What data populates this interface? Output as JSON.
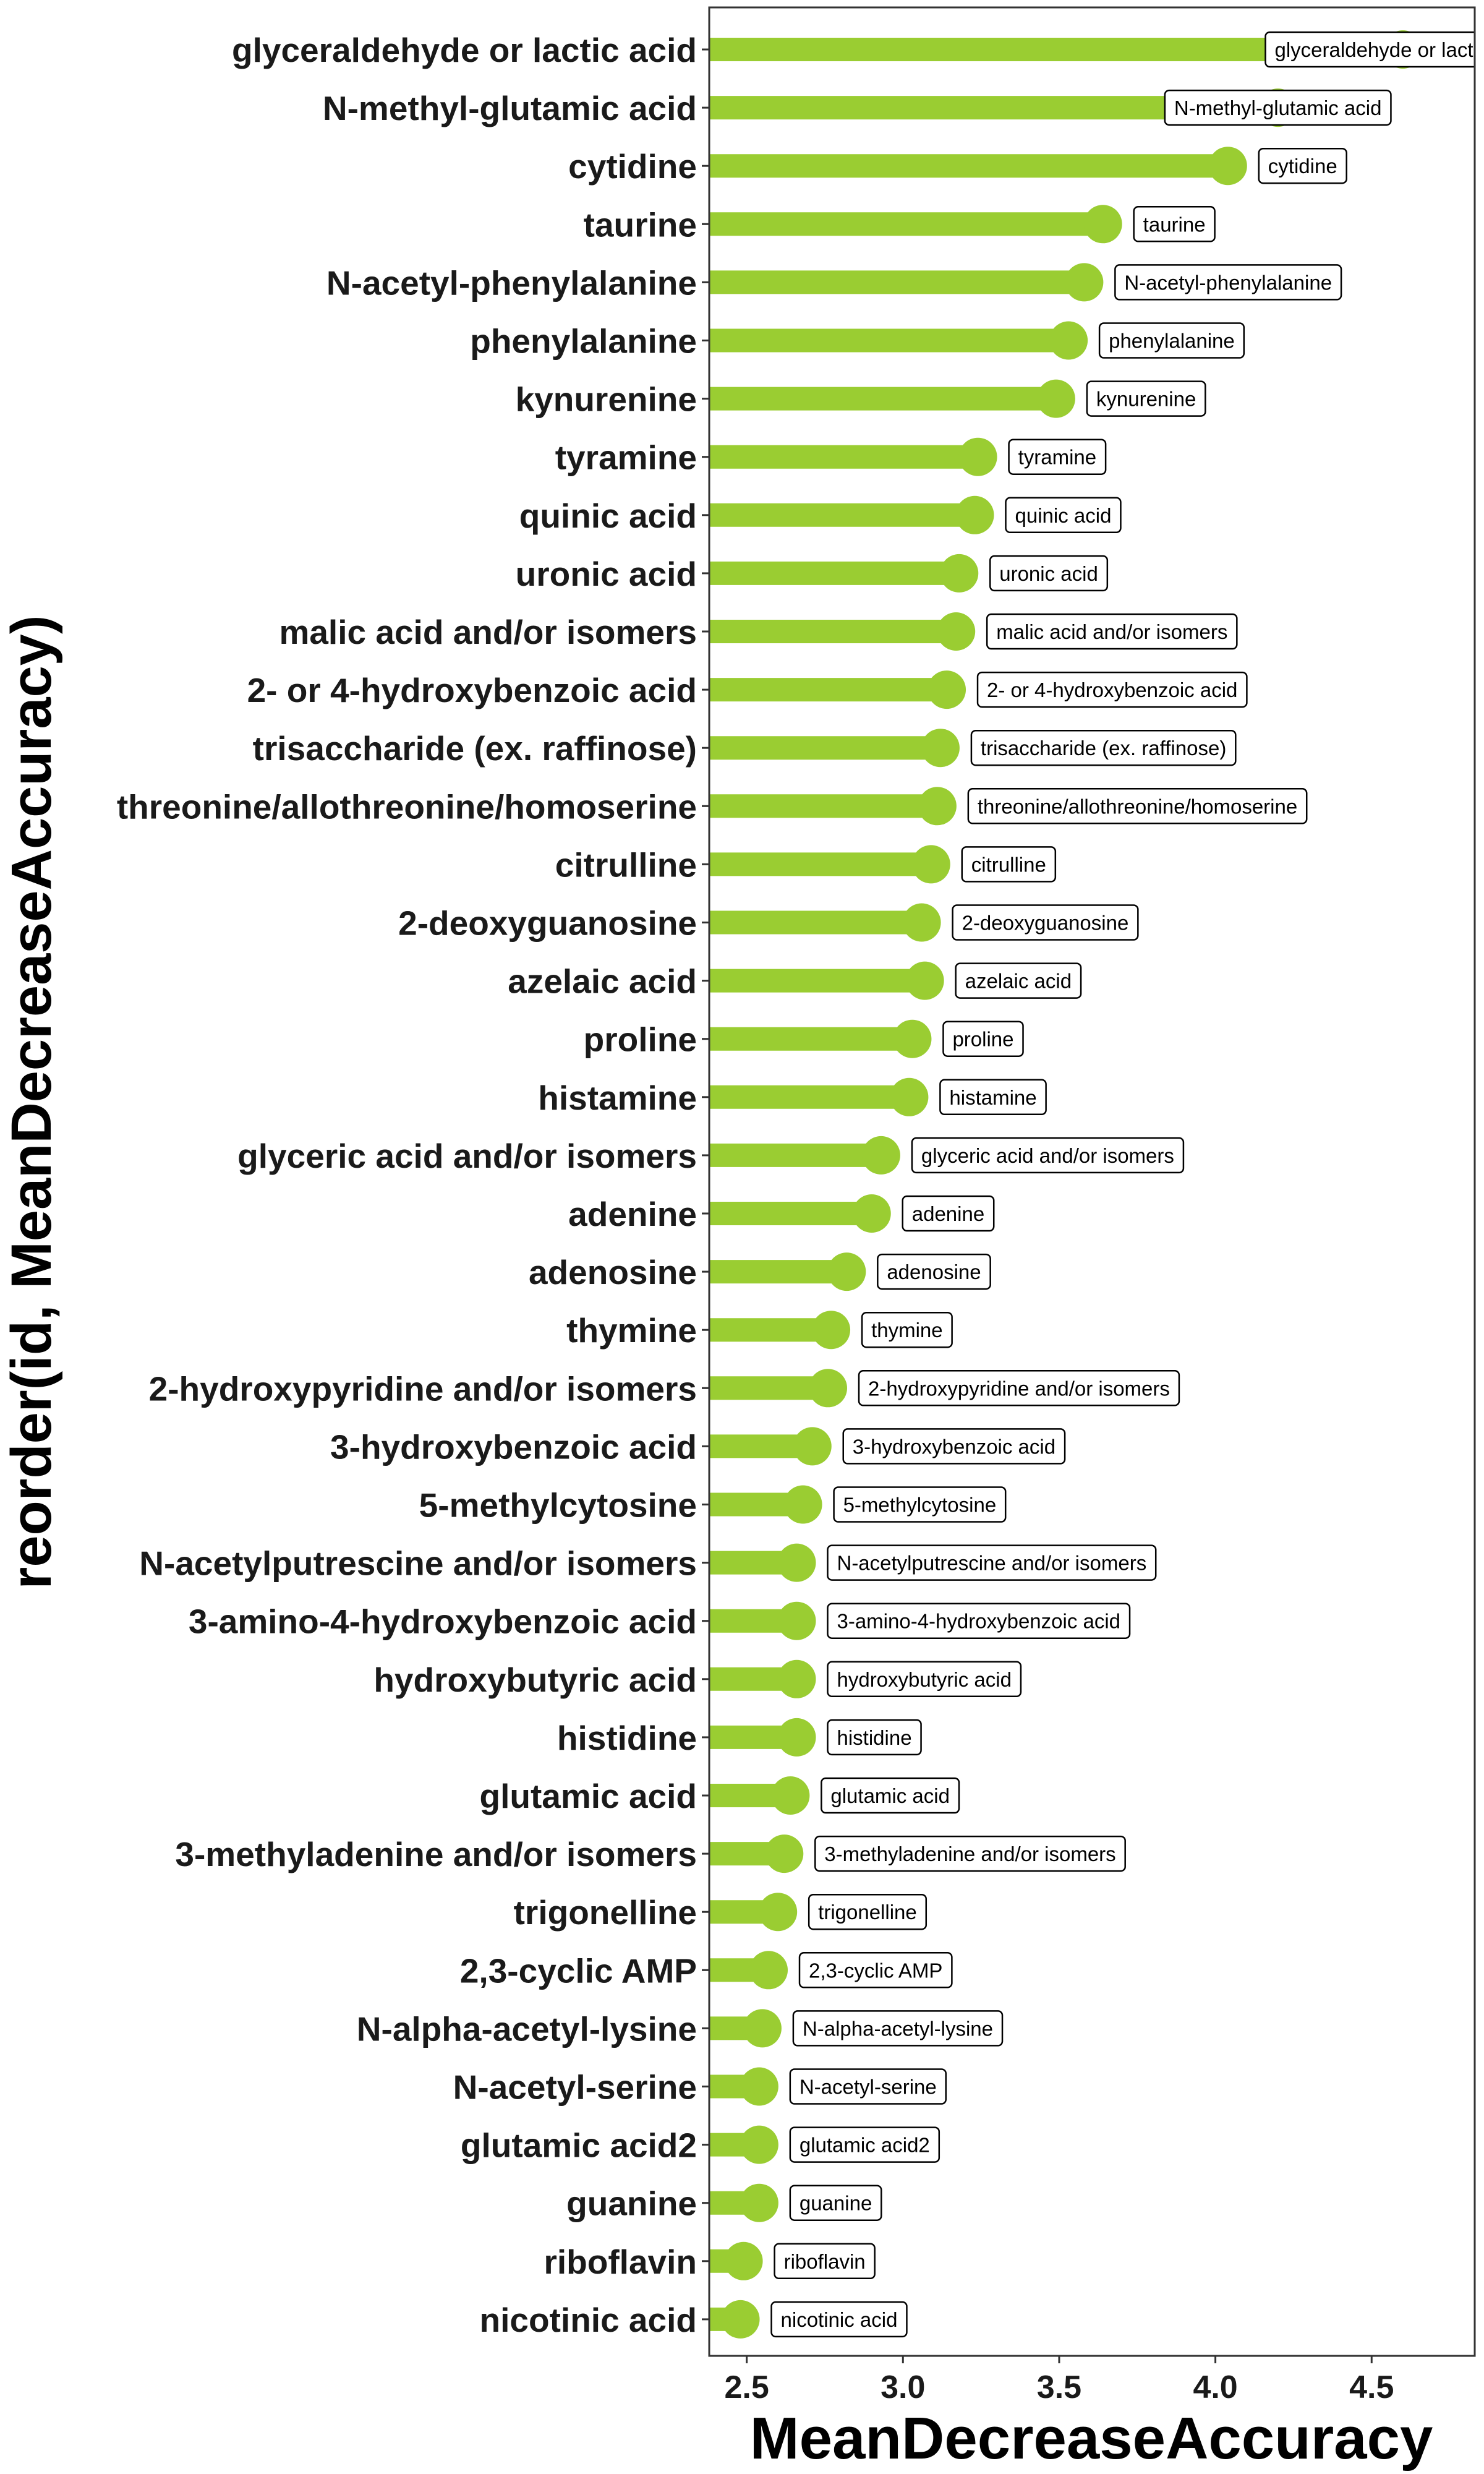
{
  "chart_data": {
    "type": "lollipop",
    "xlabel": "MeanDecreaseAccuracy",
    "ylabel": "reorder(id, MeanDecreaseAccuracy)",
    "xlim": [
      2.38,
      4.83
    ],
    "xticks": [
      2.5,
      3.0,
      3.5,
      4.0,
      4.5
    ],
    "xtick_labels": [
      "2.5",
      "3.0",
      "3.5",
      "4.0",
      "4.5"
    ],
    "grid": false,
    "color": "#9ACD32",
    "categories": [
      "glyceraldehyde or lactic acid",
      "N-methyl-glutamic acid",
      "cytidine",
      "taurine",
      "N-acetyl-phenylalanine",
      "phenylalanine",
      "kynurenine",
      "tyramine",
      "quinic acid",
      "uronic acid",
      "malic acid and/or isomers",
      "2- or 4-hydroxybenzoic acid",
      "trisaccharide (ex. raffinose)",
      "threonine/allothreonine/homoserine",
      "citrulline",
      "2-deoxyguanosine",
      "azelaic acid",
      "proline",
      "histamine",
      "glyceric acid and/or isomers",
      "adenine",
      "adenosine",
      "thymine",
      "2-hydroxypyridine and/or isomers",
      "3-hydroxybenzoic acid",
      "5-methylcytosine",
      "N-acetylputrescine and/or isomers",
      "3-amino-4-hydroxybenzoic acid",
      "hydroxybutyric acid",
      "histidine",
      "glutamic acid",
      "3-methyladenine and/or isomers",
      "trigonelline",
      "2,3-cyclic AMP",
      "N-alpha-acetyl-lysine",
      "N-acetyl-serine",
      "glutamic acid2",
      "guanine",
      "riboflavin",
      "nicotinic acid"
    ],
    "values": [
      4.6,
      4.2,
      4.04,
      3.64,
      3.58,
      3.53,
      3.49,
      3.24,
      3.23,
      3.18,
      3.17,
      3.14,
      3.12,
      3.11,
      3.09,
      3.06,
      3.07,
      3.03,
      3.02,
      2.93,
      2.9,
      2.82,
      2.77,
      2.76,
      2.71,
      2.68,
      2.66,
      2.66,
      2.66,
      2.66,
      2.64,
      2.62,
      2.6,
      2.57,
      2.55,
      2.54,
      2.54,
      2.54,
      2.49,
      2.48
    ]
  }
}
